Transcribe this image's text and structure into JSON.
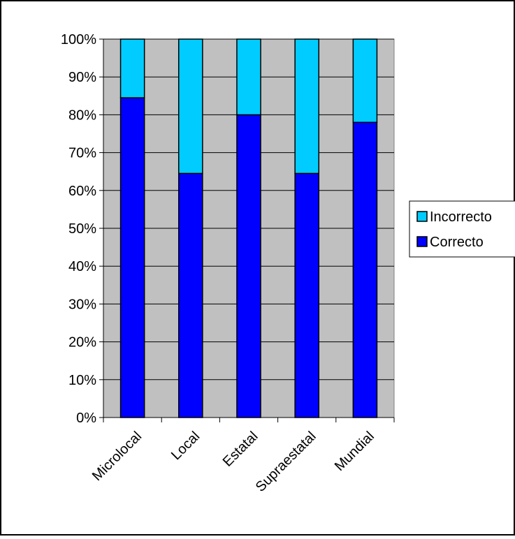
{
  "chart_data": {
    "type": "bar",
    "stacked": true,
    "percent": true,
    "categories": [
      "Microlocal",
      "Local",
      "Estatal",
      "Supraestatal",
      "Mundial"
    ],
    "series": [
      {
        "name": "Correcto",
        "values": [
          84.5,
          64.5,
          80,
          64.5,
          78
        ],
        "color": "#0000FF"
      },
      {
        "name": "Incorrecto",
        "values": [
          15.5,
          35.5,
          20,
          35.5,
          22
        ],
        "color": "#00CCFF"
      }
    ],
    "y_ticks": [
      "0%",
      "10%",
      "20%",
      "30%",
      "40%",
      "50%",
      "60%",
      "70%",
      "80%",
      "90%",
      "100%"
    ],
    "ylim": [
      0,
      100
    ],
    "grid": true,
    "legend_position": "right",
    "legend_order": [
      "Incorrecto",
      "Correcto"
    ],
    "plot_background": "#C0C0C0",
    "title": "",
    "xlabel": "",
    "ylabel": ""
  }
}
